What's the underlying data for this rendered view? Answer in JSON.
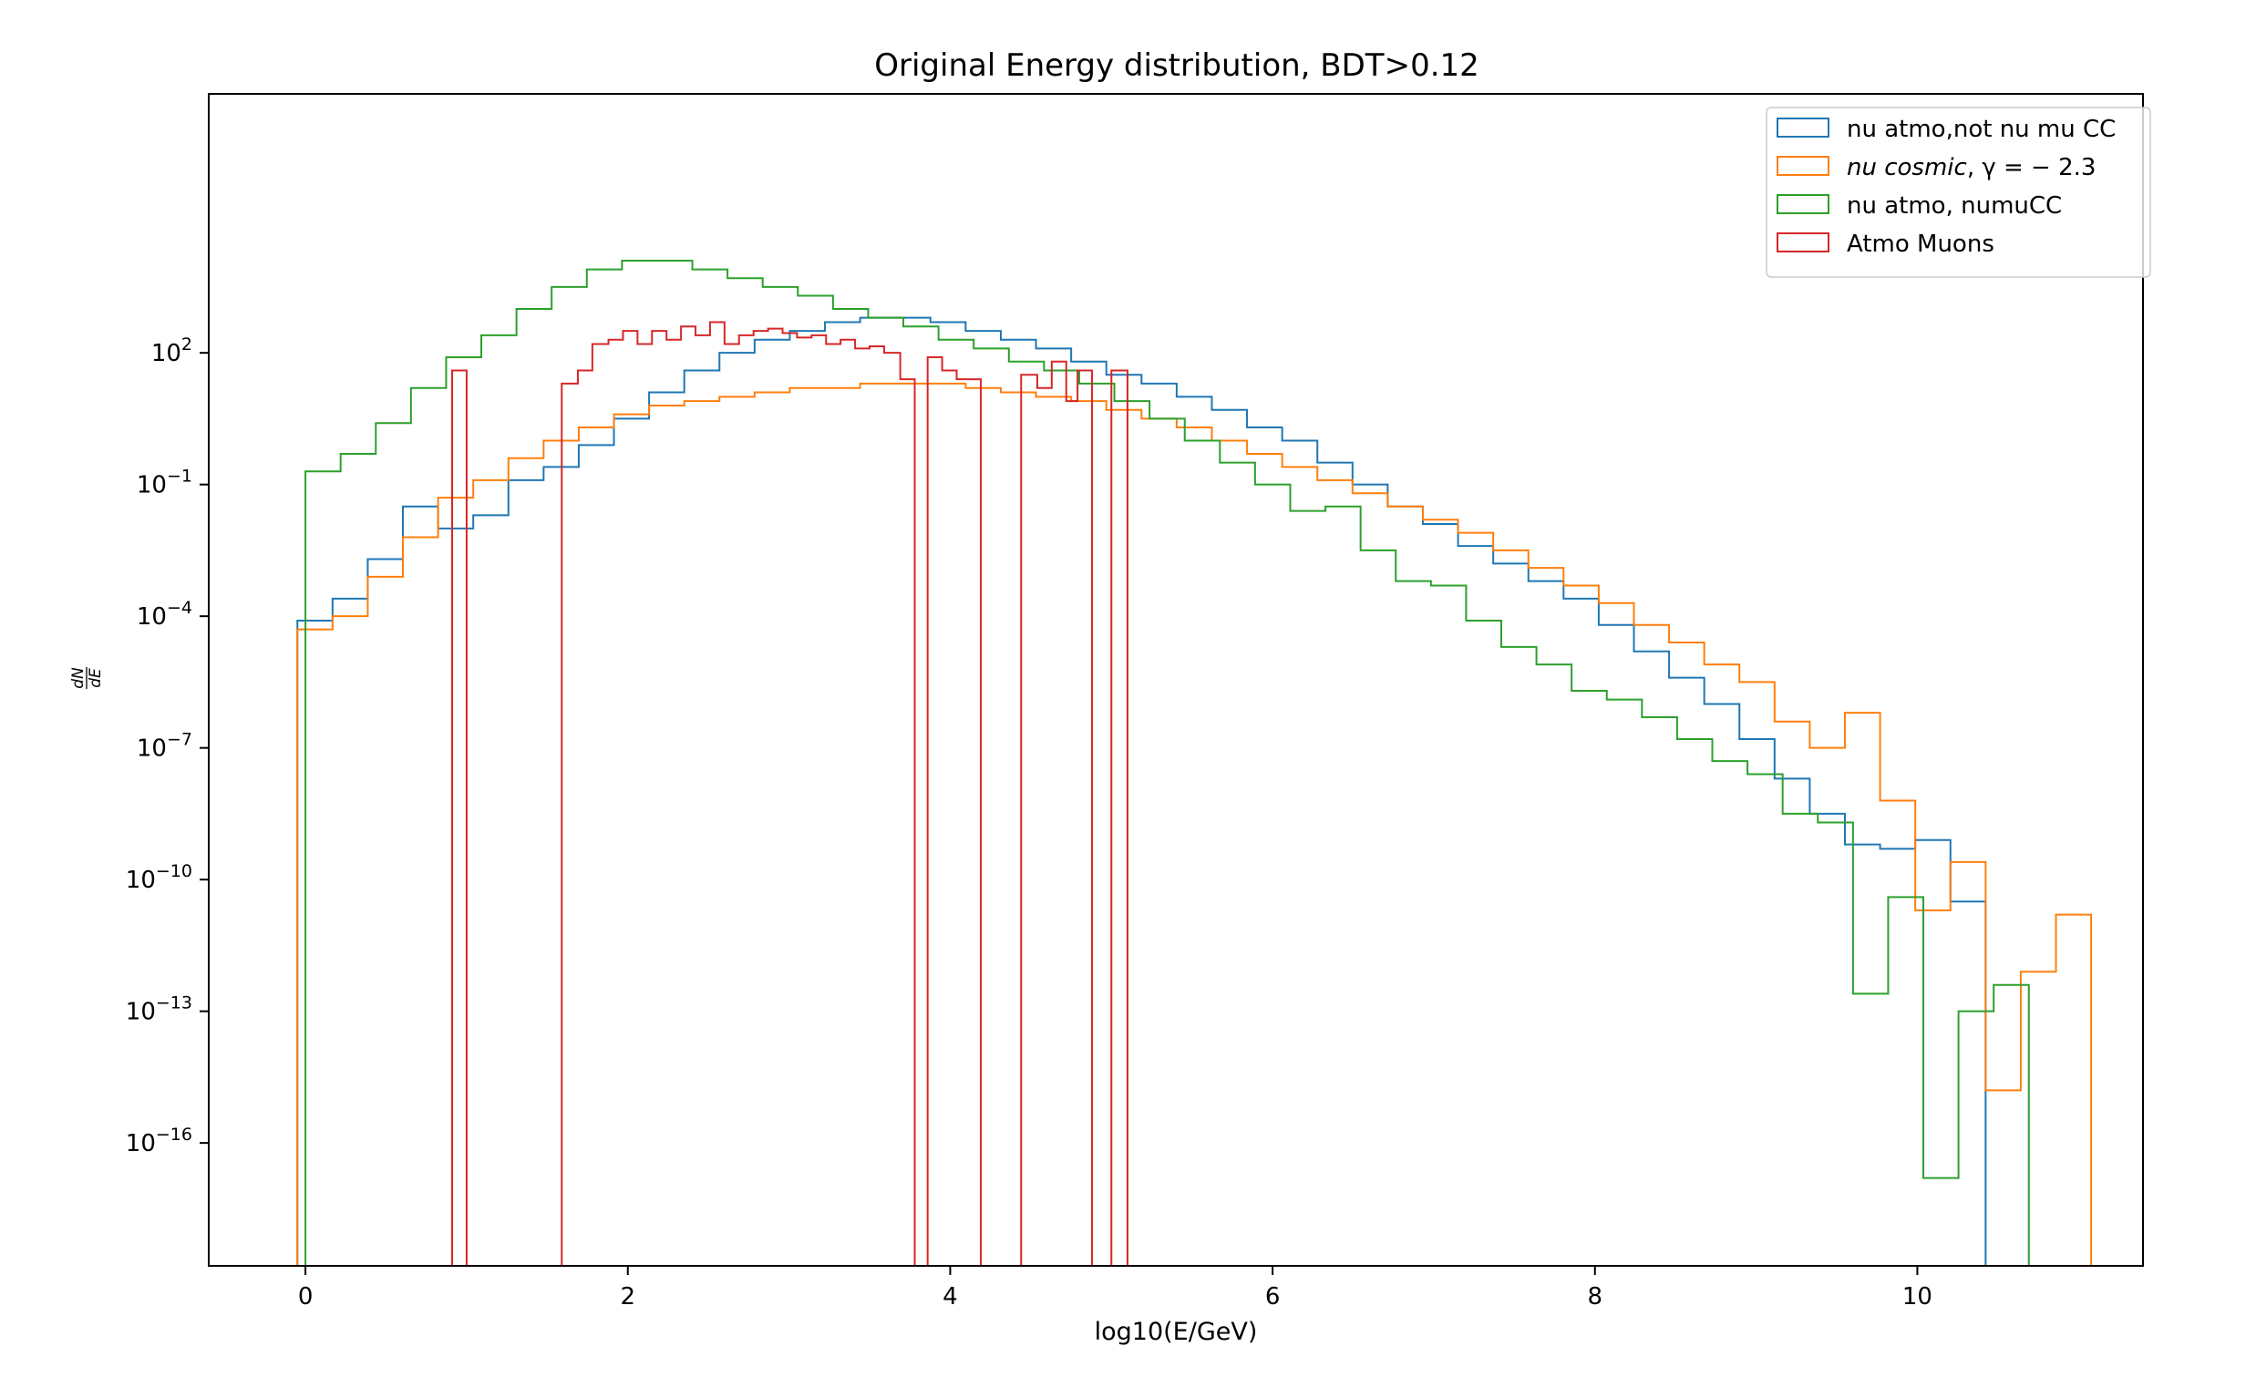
{
  "chart_data": {
    "type": "step-histogram",
    "title": "Original Energy distribution, BDT>0.12",
    "xlabel": "log10(E/GeV)",
    "ylabel": "dN/dE",
    "xlim": [
      -0.6,
      11.4
    ],
    "ylim_log10": [
      -18.8,
      7.9
    ],
    "y_scale": "log",
    "grid": false,
    "legend_position": "top-right",
    "x_ticks": [
      {
        "value": 0,
        "label": "0"
      },
      {
        "value": 2,
        "label": "2"
      },
      {
        "value": 4,
        "label": "4"
      },
      {
        "value": 6,
        "label": "6"
      },
      {
        "value": 8,
        "label": "8"
      },
      {
        "value": 10,
        "label": "10"
      }
    ],
    "y_ticks": [
      {
        "exp": 2,
        "base": "10",
        "sup": "2"
      },
      {
        "exp": -1,
        "base": "10",
        "sup": "−1"
      },
      {
        "exp": -4,
        "base": "10",
        "sup": "−4"
      },
      {
        "exp": -7,
        "base": "10",
        "sup": "−7"
      },
      {
        "exp": -10,
        "base": "10",
        "sup": "−10"
      },
      {
        "exp": -13,
        "base": "10",
        "sup": "−13"
      },
      {
        "exp": -16,
        "base": "10",
        "sup": "−16"
      }
    ],
    "series": [
      {
        "name": "nu atmo,not nu mu CC",
        "color": "#1f77b4",
        "x_start": -0.05,
        "bin_width": 0.2182,
        "log10_values": [
          -4.1,
          -3.6,
          -2.7,
          -1.5,
          -2.0,
          -1.7,
          -0.9,
          -0.6,
          -0.1,
          0.5,
          1.1,
          1.6,
          2.0,
          2.3,
          2.5,
          2.7,
          2.8,
          2.8,
          2.7,
          2.5,
          2.3,
          2.1,
          1.8,
          1.5,
          1.3,
          1.0,
          0.7,
          0.3,
          0.0,
          -0.5,
          -1.0,
          -1.5,
          -1.9,
          -2.4,
          -2.8,
          -3.2,
          -3.6,
          -4.2,
          -4.8,
          -5.4,
          -6.0,
          -6.8,
          -7.7,
          -8.5,
          -9.2,
          -9.3,
          -9.1,
          -10.5
        ]
      },
      {
        "name": "$nu cosmic$, $\\gamma = -2.3$",
        "color": "#ff7f0e",
        "x_start": -0.05,
        "bin_width": 0.2182,
        "log10_values": [
          -4.3,
          -4.0,
          -3.1,
          -2.2,
          -1.3,
          -0.9,
          -0.4,
          0.0,
          0.3,
          0.6,
          0.8,
          0.9,
          1.0,
          1.1,
          1.2,
          1.2,
          1.3,
          1.3,
          1.3,
          1.2,
          1.1,
          1.0,
          0.9,
          0.7,
          0.5,
          0.3,
          0.0,
          -0.3,
          -0.6,
          -0.9,
          -1.2,
          -1.5,
          -1.8,
          -2.1,
          -2.5,
          -2.9,
          -3.3,
          -3.7,
          -4.2,
          -4.6,
          -5.1,
          -5.5,
          -6.4,
          -7.0,
          -6.2,
          -8.2,
          -10.7,
          -9.6,
          -14.8,
          -12.1,
          -10.8
        ]
      },
      {
        "name": "nu atmo, numuCC",
        "color": "#2ca02c",
        "x_start": 0.0,
        "bin_width": 0.2182,
        "log10_values": [
          -0.7,
          -0.3,
          0.4,
          1.2,
          1.9,
          2.4,
          3.0,
          3.5,
          3.9,
          4.1,
          4.1,
          3.9,
          3.7,
          3.5,
          3.3,
          3.0,
          2.8,
          2.6,
          2.3,
          2.1,
          1.8,
          1.6,
          1.3,
          0.9,
          0.5,
          0.0,
          -0.5,
          -1.0,
          -1.6,
          -1.5,
          -2.5,
          -3.2,
          -3.3,
          -4.1,
          -4.7,
          -5.1,
          -5.7,
          -5.9,
          -6.3,
          -6.8,
          -7.3,
          -7.6,
          -8.5,
          -8.7,
          -12.6,
          -10.4,
          -16.8,
          -13.0,
          -12.4
        ]
      },
      {
        "name": "Atmo Muons",
        "color": "#d62728",
        "bars": [
          {
            "x0": 0.91,
            "x1": 1.0,
            "log10": 1.6
          },
          {
            "x0": 1.59,
            "x1": 1.69,
            "log10": 1.3
          },
          {
            "x0": 1.69,
            "x1": 1.78,
            "log10": 1.6
          },
          {
            "x0": 1.78,
            "x1": 1.88,
            "log10": 2.2
          },
          {
            "x0": 1.88,
            "x1": 1.97,
            "log10": 2.3
          },
          {
            "x0": 1.97,
            "x1": 2.06,
            "log10": 2.5
          },
          {
            "x0": 2.06,
            "x1": 2.15,
            "log10": 2.2
          },
          {
            "x0": 2.15,
            "x1": 2.24,
            "log10": 2.5
          },
          {
            "x0": 2.24,
            "x1": 2.33,
            "log10": 2.3
          },
          {
            "x0": 2.33,
            "x1": 2.42,
            "log10": 2.6
          },
          {
            "x0": 2.42,
            "x1": 2.51,
            "log10": 2.4
          },
          {
            "x0": 2.51,
            "x1": 2.6,
            "log10": 2.7
          },
          {
            "x0": 2.6,
            "x1": 2.69,
            "log10": 2.2
          },
          {
            "x0": 2.69,
            "x1": 2.78,
            "log10": 2.4
          },
          {
            "x0": 2.78,
            "x1": 2.87,
            "log10": 2.5
          },
          {
            "x0": 2.87,
            "x1": 2.96,
            "log10": 2.55
          },
          {
            "x0": 2.96,
            "x1": 3.05,
            "log10": 2.45
          },
          {
            "x0": 3.05,
            "x1": 3.14,
            "log10": 2.35
          },
          {
            "x0": 3.14,
            "x1": 3.23,
            "log10": 2.4
          },
          {
            "x0": 3.23,
            "x1": 3.32,
            "log10": 2.2
          },
          {
            "x0": 3.32,
            "x1": 3.41,
            "log10": 2.3
          },
          {
            "x0": 3.41,
            "x1": 3.5,
            "log10": 2.1
          },
          {
            "x0": 3.5,
            "x1": 3.59,
            "log10": 2.15
          },
          {
            "x0": 3.59,
            "x1": 3.69,
            "log10": 2.0
          },
          {
            "x0": 3.69,
            "x1": 3.78,
            "log10": 1.4
          },
          {
            "x0": 3.86,
            "x1": 3.95,
            "log10": 1.9
          },
          {
            "x0": 3.95,
            "x1": 4.04,
            "log10": 1.6
          },
          {
            "x0": 4.04,
            "x1": 4.19,
            "log10": 1.4
          },
          {
            "x0": 4.44,
            "x1": 4.54,
            "log10": 1.5
          },
          {
            "x0": 4.54,
            "x1": 4.63,
            "log10": 1.2
          },
          {
            "x0": 4.63,
            "x1": 4.72,
            "log10": 1.8
          },
          {
            "x0": 4.72,
            "x1": 4.79,
            "log10": 0.9
          },
          {
            "x0": 4.79,
            "x1": 4.88,
            "log10": 1.6
          },
          {
            "x0": 5.0,
            "x1": 5.1,
            "log10": 1.6
          }
        ]
      }
    ],
    "legend": [
      {
        "label": "nu atmo,not nu mu CC",
        "color": "#1f77b4"
      },
      {
        "label_italic": "nu cosmic",
        "label_rest": ", γ = − 2.3",
        "color": "#ff7f0e"
      },
      {
        "label": "nu atmo, numuCC",
        "color": "#2ca02c"
      },
      {
        "label": "Atmo Muons",
        "color": "#d62728"
      }
    ]
  }
}
